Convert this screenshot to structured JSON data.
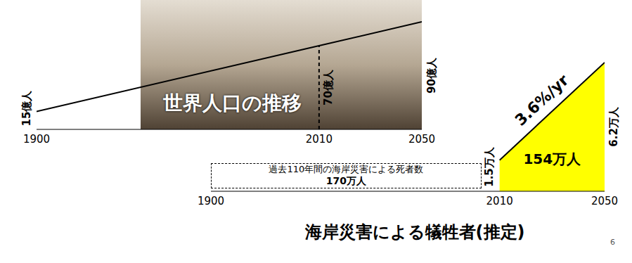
{
  "chart_data": [
    {
      "type": "line",
      "title": "世界人口の推移",
      "x": [
        1900,
        2010,
        2050
      ],
      "values": [
        15,
        70,
        90
      ],
      "value_labels": [
        "15億人",
        "70億人",
        "90億人"
      ],
      "data_labels": true,
      "xlim": [
        1900,
        2050
      ],
      "xticks": [
        1900,
        2010,
        2050
      ],
      "ylim": [
        0,
        100
      ],
      "tick_labels": "x",
      "color": "#000000"
    },
    {
      "type": "area",
      "title": "海岸災害による犠牲者(推定)",
      "x": [
        2010,
        2050
      ],
      "values": [
        1.5,
        6.2
      ],
      "value_labels": [
        "1.5万人",
        "6.2万人"
      ],
      "data_labels": true,
      "xlim": [
        1900,
        2050
      ],
      "xticks": [
        1900,
        2010,
        2050
      ],
      "ylim": [
        0,
        6.5
      ],
      "tick_labels": "x",
      "color": "#ffff00",
      "annotations": {
        "growth": "3.6%/yr",
        "total": "154万人",
        "past_text": "過去110年間の海岸災害による死者数",
        "past_total": "170万人"
      }
    }
  ],
  "page_number": "6"
}
